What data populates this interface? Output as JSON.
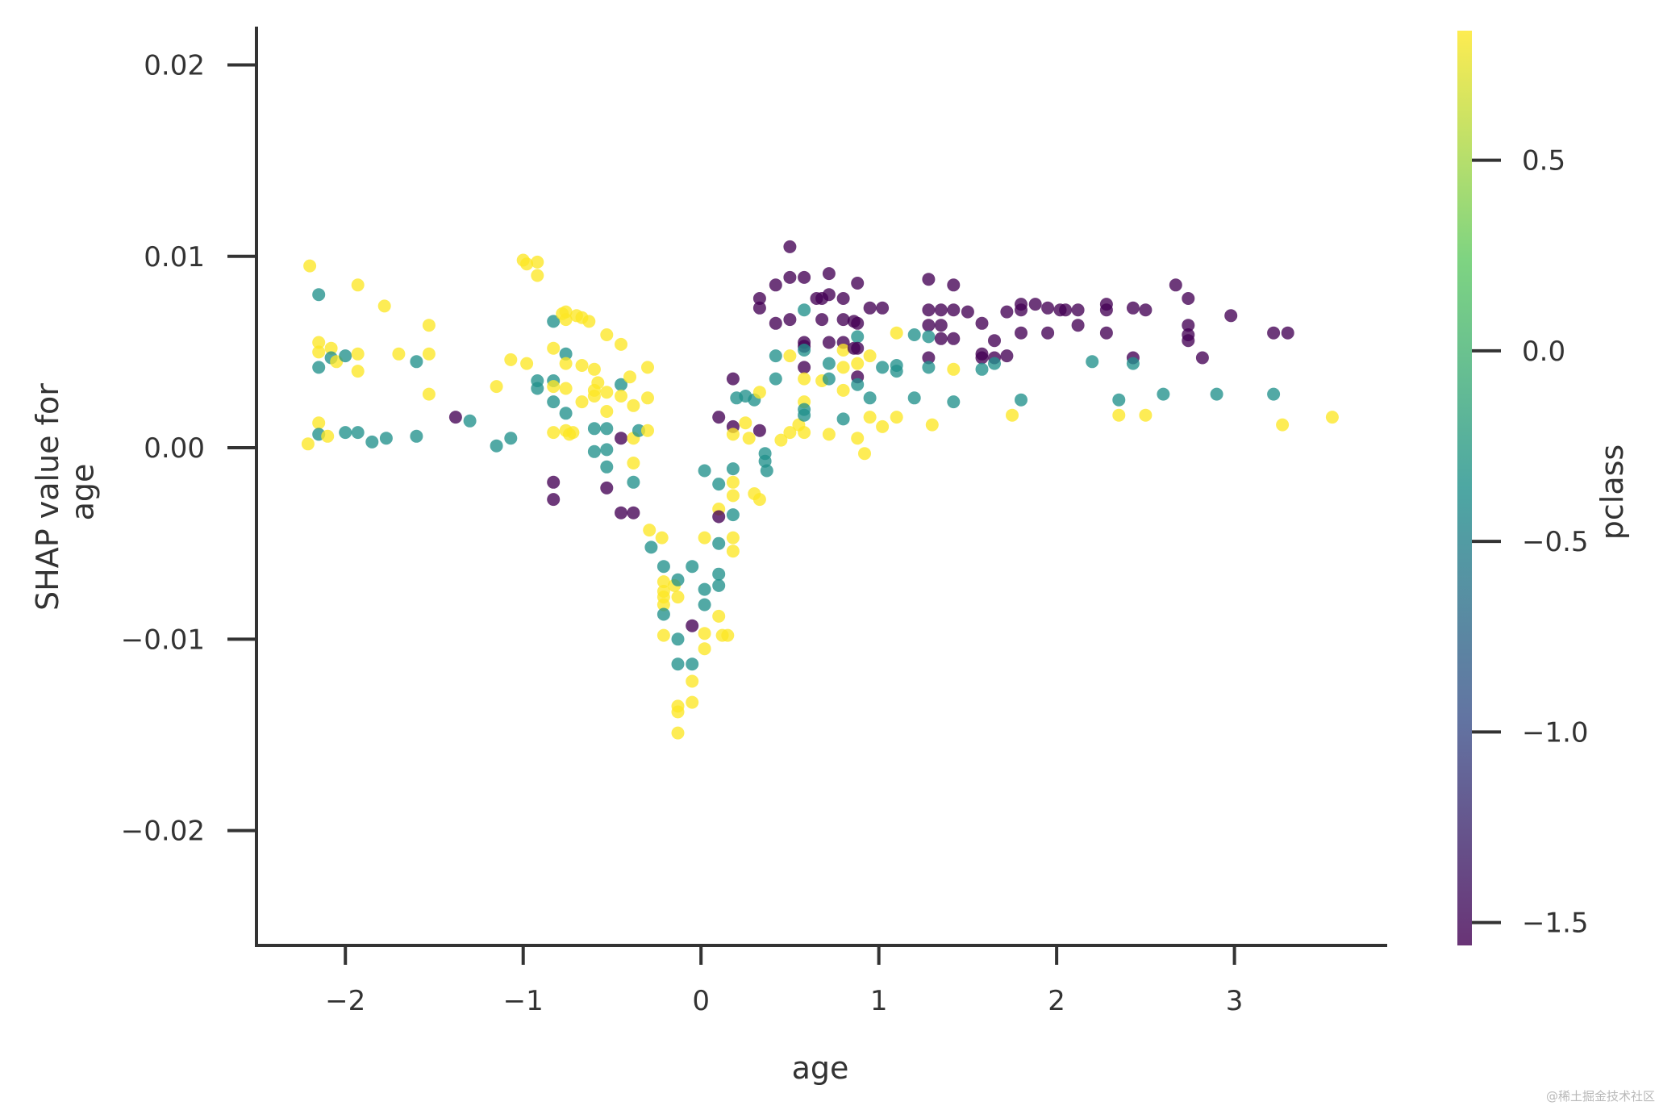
{
  "chart_data": {
    "type": "scatter",
    "xlabel": "age",
    "ylabel": [
      "SHAP value for",
      "age"
    ],
    "colorbar_label": "pclass",
    "xlim": [
      -2.5,
      3.85
    ],
    "ylim": [
      -0.026,
      0.022
    ],
    "colorbar_range": [
      -1.56,
      0.84
    ],
    "x_ticks": [
      -2,
      -1,
      0,
      1,
      2,
      3
    ],
    "x_tick_labels": [
      "−2",
      "−1",
      "0",
      "1",
      "2",
      "3"
    ],
    "y_ticks": [
      0.02,
      0.01,
      0.0,
      -0.01,
      -0.02
    ],
    "y_tick_labels": [
      "0.02",
      "0.01",
      "0.00",
      "−0.01",
      "−0.02"
    ],
    "colorbar_ticks": [
      0.5,
      0.0,
      -0.5,
      -1.0,
      -1.5
    ],
    "colorbar_tick_labels": [
      "0.5",
      "0.0",
      "−0.5",
      "−1.0",
      "−1.5"
    ],
    "colormap": [
      "#440154",
      "#3b528b",
      "#21918c",
      "#5ec962",
      "#fde725"
    ],
    "grid": false,
    "watermark": "@稀土掘金技术社区",
    "points": [
      [
        -2.2,
        0.0095,
        0.84
      ],
      [
        -2.15,
        0.008,
        -0.36
      ],
      [
        -2.15,
        0.0055,
        0.84
      ],
      [
        -2.15,
        0.005,
        0.84
      ],
      [
        -2.15,
        0.0042,
        -0.36
      ],
      [
        -2.15,
        0.0013,
        0.84
      ],
      [
        -2.15,
        0.0007,
        -0.36
      ],
      [
        -2.21,
        0.0002,
        0.84
      ],
      [
        -2.08,
        0.0052,
        0.84
      ],
      [
        -2.08,
        0.0047,
        -0.36
      ],
      [
        -2.05,
        0.0045,
        0.84
      ],
      [
        -2.1,
        0.0006,
        0.84
      ],
      [
        -2.0,
        0.0048,
        -0.36
      ],
      [
        -2.0,
        0.0008,
        -0.36
      ],
      [
        -1.93,
        0.0085,
        0.84
      ],
      [
        -1.93,
        0.0049,
        0.84
      ],
      [
        -1.93,
        0.004,
        0.84
      ],
      [
        -1.93,
        0.0008,
        -0.36
      ],
      [
        -1.85,
        0.0003,
        -0.36
      ],
      [
        -1.78,
        0.0074,
        0.84
      ],
      [
        -1.77,
        0.0005,
        -0.36
      ],
      [
        -1.7,
        0.0049,
        0.84
      ],
      [
        -1.6,
        0.0045,
        -0.36
      ],
      [
        -1.6,
        0.0006,
        -0.36
      ],
      [
        -1.53,
        0.0064,
        0.84
      ],
      [
        -1.53,
        0.0049,
        0.84
      ],
      [
        -1.53,
        0.0028,
        0.84
      ],
      [
        -1.38,
        0.0016,
        -1.56
      ],
      [
        -1.3,
        0.0014,
        -0.36
      ],
      [
        -1.15,
        0.0032,
        0.84
      ],
      [
        -1.15,
        0.0001,
        -0.36
      ],
      [
        -1.07,
        0.0046,
        0.84
      ],
      [
        -1.07,
        0.0005,
        -0.36
      ],
      [
        -1.0,
        0.0098,
        0.84
      ],
      [
        -0.98,
        0.0096,
        0.84
      ],
      [
        -0.98,
        0.0044,
        0.84
      ],
      [
        -0.92,
        0.0097,
        0.84
      ],
      [
        -0.92,
        0.009,
        0.84
      ],
      [
        -0.92,
        0.0035,
        -0.36
      ],
      [
        -0.92,
        0.0031,
        -0.36
      ],
      [
        -0.83,
        0.0066,
        -0.36
      ],
      [
        -0.83,
        0.0052,
        0.84
      ],
      [
        -0.83,
        0.0035,
        -0.36
      ],
      [
        -0.83,
        0.0032,
        0.84
      ],
      [
        -0.83,
        0.0024,
        -0.36
      ],
      [
        -0.83,
        0.0008,
        0.84
      ],
      [
        -0.83,
        -0.0018,
        -1.56
      ],
      [
        -0.83,
        -0.0027,
        -1.56
      ],
      [
        -0.78,
        0.007,
        0.84
      ],
      [
        -0.76,
        0.0071,
        0.84
      ],
      [
        -0.76,
        0.0067,
        0.84
      ],
      [
        -0.76,
        0.0049,
        -0.36
      ],
      [
        -0.76,
        0.0044,
        0.84
      ],
      [
        -0.76,
        0.0031,
        0.84
      ],
      [
        -0.76,
        0.0018,
        -0.36
      ],
      [
        -0.76,
        0.0009,
        0.84
      ],
      [
        -0.74,
        0.0007,
        0.84
      ],
      [
        -0.72,
        0.0008,
        0.84
      ],
      [
        -0.7,
        0.0069,
        0.84
      ],
      [
        -0.67,
        0.0068,
        0.84
      ],
      [
        -0.67,
        0.0043,
        0.84
      ],
      [
        -0.67,
        0.0024,
        0.84
      ],
      [
        -0.63,
        0.0066,
        0.84
      ],
      [
        -0.6,
        0.0041,
        0.84
      ],
      [
        -0.6,
        0.003,
        0.84
      ],
      [
        -0.6,
        0.0027,
        0.84
      ],
      [
        -0.6,
        0.001,
        -0.36
      ],
      [
        -0.6,
        -0.0002,
        -0.36
      ],
      [
        -0.58,
        0.0034,
        0.84
      ],
      [
        -0.53,
        0.0059,
        0.84
      ],
      [
        -0.53,
        0.0029,
        0.84
      ],
      [
        -0.53,
        0.0019,
        0.84
      ],
      [
        -0.53,
        0.001,
        -0.36
      ],
      [
        -0.53,
        -0.0001,
        -0.36
      ],
      [
        -0.53,
        -0.001,
        -0.36
      ],
      [
        -0.53,
        -0.0021,
        -1.56
      ],
      [
        -0.45,
        0.0054,
        0.84
      ],
      [
        -0.45,
        0.0033,
        -0.36
      ],
      [
        -0.45,
        0.0027,
        0.84
      ],
      [
        -0.45,
        0.0005,
        -1.56
      ],
      [
        -0.45,
        -0.0034,
        -1.56
      ],
      [
        -0.4,
        0.0037,
        0.84
      ],
      [
        -0.38,
        0.0022,
        0.84
      ],
      [
        -0.38,
        0.0005,
        0.84
      ],
      [
        -0.38,
        -0.0008,
        0.84
      ],
      [
        -0.38,
        -0.0018,
        -0.36
      ],
      [
        -0.38,
        -0.0034,
        -1.56
      ],
      [
        -0.35,
        0.0009,
        -0.36
      ],
      [
        -0.3,
        0.0042,
        0.84
      ],
      [
        -0.3,
        0.0026,
        0.84
      ],
      [
        -0.3,
        0.0009,
        0.84
      ],
      [
        -0.29,
        -0.0043,
        0.84
      ],
      [
        -0.28,
        -0.0052,
        -0.36
      ],
      [
        -0.22,
        -0.0047,
        0.84
      ],
      [
        -0.21,
        -0.0062,
        -0.36
      ],
      [
        -0.21,
        -0.007,
        0.84
      ],
      [
        -0.21,
        -0.0075,
        0.84
      ],
      [
        -0.21,
        -0.0078,
        0.84
      ],
      [
        -0.21,
        -0.0082,
        0.84
      ],
      [
        -0.21,
        -0.0087,
        -0.36
      ],
      [
        -0.21,
        -0.0098,
        0.84
      ],
      [
        -0.15,
        -0.0072,
        0.84
      ],
      [
        -0.13,
        -0.0069,
        -0.36
      ],
      [
        -0.13,
        -0.0078,
        0.84
      ],
      [
        -0.13,
        -0.01,
        -0.36
      ],
      [
        -0.13,
        -0.0113,
        -0.36
      ],
      [
        -0.13,
        -0.0135,
        0.84
      ],
      [
        -0.13,
        -0.0138,
        0.84
      ],
      [
        -0.13,
        -0.0149,
        0.84
      ],
      [
        -0.05,
        -0.0062,
        -0.36
      ],
      [
        -0.05,
        -0.0093,
        -1.56
      ],
      [
        -0.05,
        -0.0113,
        -0.36
      ],
      [
        -0.05,
        -0.0122,
        0.84
      ],
      [
        -0.05,
        -0.0133,
        0.84
      ],
      [
        0.02,
        -0.0012,
        -0.36
      ],
      [
        0.02,
        -0.0047,
        0.84
      ],
      [
        0.02,
        -0.0074,
        -0.36
      ],
      [
        0.02,
        -0.0082,
        -0.36
      ],
      [
        0.02,
        -0.0097,
        0.84
      ],
      [
        0.02,
        -0.0105,
        0.84
      ],
      [
        0.1,
        0.0016,
        -1.56
      ],
      [
        0.1,
        -0.0019,
        -0.36
      ],
      [
        0.1,
        -0.0032,
        0.84
      ],
      [
        0.1,
        -0.0036,
        -1.56
      ],
      [
        0.1,
        -0.005,
        -0.36
      ],
      [
        0.1,
        -0.0066,
        -0.36
      ],
      [
        0.1,
        -0.0072,
        -0.36
      ],
      [
        0.1,
        -0.0088,
        0.84
      ],
      [
        0.12,
        -0.0098,
        0.84
      ],
      [
        0.15,
        -0.0098,
        0.84
      ],
      [
        0.18,
        0.0036,
        -1.56
      ],
      [
        0.18,
        0.0011,
        -1.56
      ],
      [
        0.18,
        0.0007,
        0.84
      ],
      [
        0.18,
        -0.0011,
        -0.36
      ],
      [
        0.18,
        -0.0018,
        0.84
      ],
      [
        0.18,
        -0.0025,
        0.84
      ],
      [
        0.18,
        -0.0035,
        -0.36
      ],
      [
        0.18,
        -0.0047,
        0.84
      ],
      [
        0.18,
        -0.0054,
        0.84
      ],
      [
        0.2,
        0.0026,
        -0.36
      ],
      [
        0.25,
        0.0027,
        -0.36
      ],
      [
        0.25,
        0.0013,
        0.84
      ],
      [
        0.27,
        0.0005,
        0.84
      ],
      [
        0.3,
        0.0025,
        -0.36
      ],
      [
        0.3,
        -0.0024,
        0.84
      ],
      [
        0.33,
        0.0078,
        -1.56
      ],
      [
        0.33,
        0.0073,
        -1.56
      ],
      [
        0.33,
        0.0029,
        0.84
      ],
      [
        0.33,
        0.0009,
        -1.56
      ],
      [
        0.33,
        -0.0027,
        0.84
      ],
      [
        0.36,
        -0.0003,
        -0.36
      ],
      [
        0.36,
        -0.0007,
        -0.36
      ],
      [
        0.37,
        -0.0012,
        -0.36
      ],
      [
        0.42,
        0.0085,
        -1.56
      ],
      [
        0.42,
        0.0065,
        -1.56
      ],
      [
        0.42,
        0.0048,
        -0.36
      ],
      [
        0.42,
        0.0036,
        -0.36
      ],
      [
        0.45,
        0.0004,
        0.84
      ],
      [
        0.5,
        0.0105,
        -1.56
      ],
      [
        0.5,
        0.0089,
        -1.56
      ],
      [
        0.5,
        0.0067,
        -1.56
      ],
      [
        0.5,
        0.0048,
        0.84
      ],
      [
        0.5,
        0.0008,
        0.84
      ],
      [
        0.55,
        0.0012,
        0.84
      ],
      [
        0.58,
        0.0089,
        -1.56
      ],
      [
        0.58,
        0.0072,
        -0.36
      ],
      [
        0.58,
        0.0055,
        -1.56
      ],
      [
        0.58,
        0.0053,
        -1.56
      ],
      [
        0.58,
        0.0051,
        -0.36
      ],
      [
        0.58,
        0.0042,
        -1.56
      ],
      [
        0.58,
        0.0036,
        0.84
      ],
      [
        0.58,
        0.0024,
        0.84
      ],
      [
        0.58,
        0.002,
        -0.36
      ],
      [
        0.58,
        0.0017,
        -0.36
      ],
      [
        0.58,
        0.0008,
        0.84
      ],
      [
        0.65,
        0.0078,
        -1.56
      ],
      [
        0.68,
        0.0078,
        -1.56
      ],
      [
        0.68,
        0.0067,
        -1.56
      ],
      [
        0.68,
        0.0035,
        0.84
      ],
      [
        0.72,
        0.0091,
        -1.56
      ],
      [
        0.72,
        0.008,
        -1.56
      ],
      [
        0.72,
        0.0055,
        -1.56
      ],
      [
        0.72,
        0.0044,
        -0.36
      ],
      [
        0.72,
        0.0036,
        -0.36
      ],
      [
        0.72,
        0.0007,
        0.84
      ],
      [
        0.8,
        0.0078,
        -1.56
      ],
      [
        0.8,
        0.0067,
        -1.56
      ],
      [
        0.8,
        0.0055,
        -1.56
      ],
      [
        0.8,
        0.0051,
        0.84
      ],
      [
        0.8,
        0.0042,
        0.84
      ],
      [
        0.8,
        0.003,
        0.84
      ],
      [
        0.8,
        0.0015,
        -0.36
      ],
      [
        0.86,
        0.0066,
        -1.56
      ],
      [
        0.86,
        0.0052,
        -1.56
      ],
      [
        0.88,
        0.0086,
        -1.56
      ],
      [
        0.88,
        0.0065,
        -1.56
      ],
      [
        0.88,
        0.0058,
        -0.36
      ],
      [
        0.88,
        0.0052,
        -1.56
      ],
      [
        0.88,
        0.0044,
        0.84
      ],
      [
        0.88,
        0.0037,
        -1.56
      ],
      [
        0.88,
        0.0033,
        -0.36
      ],
      [
        0.88,
        0.0005,
        0.84
      ],
      [
        0.92,
        -0.0003,
        0.84
      ],
      [
        0.95,
        0.0073,
        -1.56
      ],
      [
        0.95,
        0.0048,
        0.84
      ],
      [
        0.95,
        0.0026,
        -0.36
      ],
      [
        0.95,
        0.0016,
        0.84
      ],
      [
        1.02,
        0.0073,
        -1.56
      ],
      [
        1.02,
        0.0042,
        -0.36
      ],
      [
        1.02,
        0.0011,
        0.84
      ],
      [
        1.1,
        0.006,
        0.84
      ],
      [
        1.1,
        0.0043,
        -0.36
      ],
      [
        1.1,
        0.004,
        -0.36
      ],
      [
        1.1,
        0.0016,
        0.84
      ],
      [
        1.2,
        0.0059,
        -0.36
      ],
      [
        1.2,
        0.0026,
        -0.36
      ],
      [
        1.28,
        0.0088,
        -1.56
      ],
      [
        1.28,
        0.0072,
        -1.56
      ],
      [
        1.28,
        0.0064,
        -1.56
      ],
      [
        1.28,
        0.0058,
        -0.36
      ],
      [
        1.28,
        0.0047,
        -1.56
      ],
      [
        1.28,
        0.0042,
        -0.36
      ],
      [
        1.3,
        0.0012,
        0.84
      ],
      [
        1.35,
        0.0072,
        -1.56
      ],
      [
        1.35,
        0.0064,
        -1.56
      ],
      [
        1.35,
        0.0057,
        -1.56
      ],
      [
        1.42,
        0.0085,
        -1.56
      ],
      [
        1.42,
        0.0072,
        -1.56
      ],
      [
        1.42,
        0.0057,
        -1.56
      ],
      [
        1.42,
        0.0041,
        0.84
      ],
      [
        1.42,
        0.0024,
        -0.36
      ],
      [
        1.5,
        0.0071,
        -1.56
      ],
      [
        1.58,
        0.0065,
        -1.56
      ],
      [
        1.58,
        0.0049,
        -1.56
      ],
      [
        1.58,
        0.0047,
        -1.56
      ],
      [
        1.58,
        0.0041,
        -0.36
      ],
      [
        1.65,
        0.0056,
        -1.56
      ],
      [
        1.65,
        0.0047,
        -1.56
      ],
      [
        1.65,
        0.0044,
        -0.36
      ],
      [
        1.72,
        0.0071,
        -1.56
      ],
      [
        1.72,
        0.0048,
        -1.56
      ],
      [
        1.75,
        0.0017,
        0.84
      ],
      [
        1.8,
        0.0075,
        -1.56
      ],
      [
        1.8,
        0.0072,
        -1.56
      ],
      [
        1.8,
        0.006,
        -1.56
      ],
      [
        1.8,
        0.0025,
        -0.36
      ],
      [
        1.88,
        0.0075,
        -1.56
      ],
      [
        1.95,
        0.0073,
        -1.56
      ],
      [
        1.95,
        0.006,
        -1.56
      ],
      [
        2.02,
        0.0072,
        -1.56
      ],
      [
        2.05,
        0.0072,
        -1.56
      ],
      [
        2.12,
        0.0072,
        -1.56
      ],
      [
        2.12,
        0.0064,
        -1.56
      ],
      [
        2.2,
        0.0045,
        -0.36
      ],
      [
        2.28,
        0.0075,
        -1.56
      ],
      [
        2.28,
        0.0072,
        -1.56
      ],
      [
        2.28,
        0.006,
        -1.56
      ],
      [
        2.35,
        0.0025,
        -0.36
      ],
      [
        2.35,
        0.0017,
        0.84
      ],
      [
        2.43,
        0.0073,
        -1.56
      ],
      [
        2.43,
        0.0047,
        -1.56
      ],
      [
        2.43,
        0.0044,
        -0.36
      ],
      [
        2.5,
        0.0072,
        -1.56
      ],
      [
        2.5,
        0.0017,
        0.84
      ],
      [
        2.6,
        0.0028,
        -0.36
      ],
      [
        2.67,
        0.0085,
        -1.56
      ],
      [
        2.74,
        0.0078,
        -1.56
      ],
      [
        2.74,
        0.0064,
        -1.56
      ],
      [
        2.74,
        0.0059,
        -1.56
      ],
      [
        2.74,
        0.0056,
        -1.56
      ],
      [
        2.82,
        0.0047,
        -1.56
      ],
      [
        2.9,
        0.0028,
        -0.36
      ],
      [
        2.98,
        0.0069,
        -1.56
      ],
      [
        3.22,
        0.006,
        -1.56
      ],
      [
        3.22,
        0.0028,
        -0.36
      ],
      [
        3.27,
        0.0012,
        0.84
      ],
      [
        3.3,
        0.006,
        -1.56
      ],
      [
        3.55,
        0.0016,
        0.84
      ]
    ]
  }
}
